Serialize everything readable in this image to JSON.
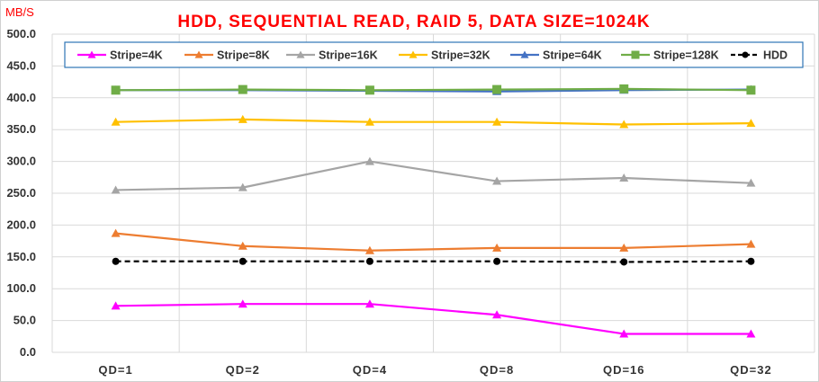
{
  "chart_data": {
    "type": "line",
    "title": "HDD, SEQUENTIAL READ, RAID 5, DATA SIZE=1024K",
    "ylabel": "MB/S",
    "xlabel": "",
    "categories": [
      "QD=1",
      "QD=2",
      "QD=4",
      "QD=8",
      "QD=16",
      "QD=32"
    ],
    "ylim": [
      0,
      500
    ],
    "yticks": [
      "0.0",
      "50.0",
      "100.0",
      "150.0",
      "200.0",
      "250.0",
      "300.0",
      "350.0",
      "400.0",
      "450.0",
      "500.0"
    ],
    "grid": true,
    "legend_position": "top",
    "series": [
      {
        "name": "Stripe=4K",
        "color": "#ff00ff",
        "marker": "triangle",
        "dashed": false,
        "values": [
          73,
          76,
          76,
          59,
          29,
          29
        ]
      },
      {
        "name": "Stripe=8K",
        "color": "#ed7d31",
        "marker": "triangle",
        "dashed": false,
        "values": [
          187,
          167,
          160,
          164,
          164,
          170
        ]
      },
      {
        "name": "Stripe=16K",
        "color": "#a5a5a5",
        "marker": "triangle",
        "dashed": false,
        "values": [
          255,
          259,
          300,
          269,
          274,
          266
        ]
      },
      {
        "name": "Stripe=32K",
        "color": "#ffc000",
        "marker": "triangle",
        "dashed": false,
        "values": [
          362,
          366,
          362,
          362,
          358,
          360
        ]
      },
      {
        "name": "Stripe=64K",
        "color": "#4472c4",
        "marker": "triangle",
        "dashed": false,
        "values": [
          412,
          412,
          411,
          410,
          412,
          413
        ]
      },
      {
        "name": "Stripe=128K",
        "color": "#70ad47",
        "marker": "square",
        "dashed": false,
        "values": [
          412,
          413,
          412,
          413,
          414,
          412
        ]
      },
      {
        "name": "HDD",
        "color": "#000000",
        "marker": "circle",
        "dashed": true,
        "values": [
          143,
          143,
          143,
          143,
          142,
          143
        ]
      }
    ]
  }
}
